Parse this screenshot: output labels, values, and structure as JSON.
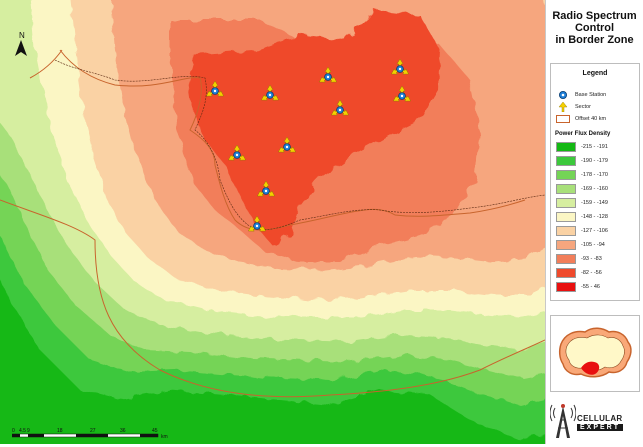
{
  "title": {
    "line1": "Radio Spectrum",
    "line2": "Control",
    "line3": "in Border Zone"
  },
  "legend": {
    "title": "Legend",
    "base_station": "Base Station",
    "sector": "Sector",
    "offset": "Offset 40 km",
    "pfd_title": "Power Flux Density",
    "classes": [
      {
        "label": "-215 - -191",
        "color": "#14b814"
      },
      {
        "label": "-190 - -179",
        "color": "#3cc83c"
      },
      {
        "label": "-178 - -170",
        "color": "#74d456"
      },
      {
        "label": "-169 - -160",
        "color": "#a8e07a"
      },
      {
        "label": "-159 - -149",
        "color": "#d6eea0"
      },
      {
        "label": "-148 - -128",
        "color": "#fbf6c4"
      },
      {
        "label": "-127 - -106",
        "color": "#fad2a4"
      },
      {
        "label": "-105 - -94",
        "color": "#f6a67e"
      },
      {
        "label": "-93 - -83",
        "color": "#f27e5a"
      },
      {
        "label": "-82 - -56",
        "color": "#ef4a2c"
      },
      {
        "label": "-55 - 46",
        "color": "#e81010"
      }
    ]
  },
  "map": {
    "north": "N",
    "scale_labels": [
      "0",
      "4.5",
      "9",
      "18",
      "27",
      "36",
      "45"
    ],
    "scale_unit": "km"
  },
  "logo": {
    "line1": "CELLULAR",
    "line2": "EXPERT"
  },
  "colors": {
    "offset_line": "#c8642d",
    "station_fill": "#1e7fd8",
    "sector": "#f5d000"
  }
}
